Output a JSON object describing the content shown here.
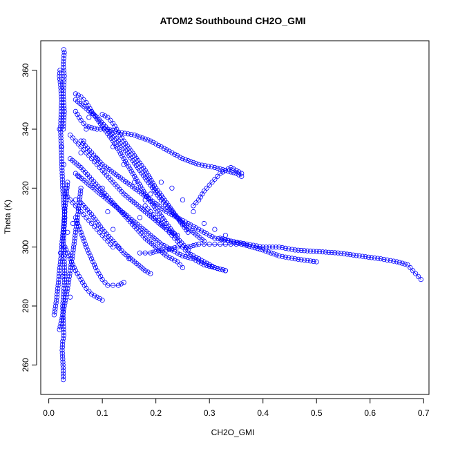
{
  "chart_data": {
    "type": "scatter",
    "title": "ATOM2 Southbound CH2O_GMI",
    "xlabel": "CH2O_GMI",
    "ylabel": "Theta (K)",
    "xlim": [
      -0.015,
      0.71
    ],
    "ylim": [
      250,
      370
    ],
    "xticks": [
      0.0,
      0.1,
      0.2,
      0.3,
      0.4,
      0.5,
      0.6,
      0.7
    ],
    "xtick_labels": [
      "0.0",
      "0.1",
      "0.2",
      "0.3",
      "0.4",
      "0.5",
      "0.6",
      "0.7"
    ],
    "yticks": [
      260,
      280,
      300,
      320,
      340,
      360
    ],
    "ytick_labels": [
      "260",
      "280",
      "300",
      "320",
      "340",
      "360"
    ],
    "grid": false,
    "marker": "open-circle",
    "color": "#0000ff",
    "series": [
      {
        "x": [
          0.027,
          0.027,
          0.026,
          0.025,
          0.026,
          0.028,
          0.027,
          0.026,
          0.028,
          0.03,
          0.029,
          0.027,
          0.028,
          0.03,
          0.026,
          0.024,
          0.022,
          0.023,
          0.024,
          0.022,
          0.02,
          0.021
        ],
        "y": [
          255,
          258,
          262,
          265,
          268,
          270,
          275,
          280,
          285,
          290,
          295,
          300,
          305,
          310,
          320,
          330,
          340,
          345,
          350,
          355,
          358,
          360
        ]
      },
      {
        "x": [
          0.028,
          0.029,
          0.028,
          0.027,
          0.028,
          0.029,
          0.028,
          0.027,
          0.028,
          0.029,
          0.028,
          0.027
        ],
        "y": [
          367,
          366,
          364,
          362,
          360,
          358,
          355,
          352,
          349,
          346,
          343,
          340
        ]
      },
      {
        "x": [
          0.01,
          0.012,
          0.015,
          0.018,
          0.02,
          0.023,
          0.025,
          0.028,
          0.03,
          0.033,
          0.035
        ],
        "y": [
          277,
          279,
          283,
          288,
          292,
          297,
          302,
          308,
          313,
          318,
          322
        ]
      },
      {
        "x": [
          0.05,
          0.06,
          0.07,
          0.09,
          0.11,
          0.13,
          0.16,
          0.19,
          0.22,
          0.25,
          0.28,
          0.31,
          0.33,
          0.35,
          0.36
        ],
        "y": [
          346,
          343,
          341,
          340,
          340,
          339,
          338,
          336,
          333,
          330,
          328,
          327,
          326,
          325,
          324
        ]
      },
      {
        "x": [
          0.36,
          0.35,
          0.34,
          0.33,
          0.32,
          0.31,
          0.3,
          0.29,
          0.28,
          0.27
        ],
        "y": [
          325,
          326,
          327,
          326,
          325,
          323,
          321,
          319,
          316,
          314
        ]
      },
      {
        "x": [
          0.06,
          0.08,
          0.1,
          0.13,
          0.16,
          0.19,
          0.22,
          0.25,
          0.28,
          0.31,
          0.34,
          0.37,
          0.4,
          0.43,
          0.46,
          0.5,
          0.54,
          0.58,
          0.62,
          0.65,
          0.67,
          0.68,
          0.69,
          0.695
        ],
        "y": [
          336,
          332,
          328,
          324,
          320,
          316,
          312,
          309,
          306,
          303,
          302,
          301,
          300,
          300,
          299,
          298.5,
          298,
          297,
          296,
          295,
          294,
          292,
          290,
          289
        ]
      },
      {
        "x": [
          0.32,
          0.36,
          0.4,
          0.43,
          0.46,
          0.5
        ],
        "y": [
          303,
          301,
          299,
          297,
          296,
          295
        ]
      },
      {
        "x": [
          0.05,
          0.07,
          0.09,
          0.11,
          0.13,
          0.15,
          0.17,
          0.19,
          0.21,
          0.23,
          0.25,
          0.27,
          0.29
        ],
        "y": [
          350,
          347,
          344,
          340,
          336,
          331,
          326,
          321,
          316,
          312,
          308,
          305,
          302
        ]
      },
      {
        "x": [
          0.05,
          0.06,
          0.07,
          0.08,
          0.1,
          0.12,
          0.14,
          0.16,
          0.18,
          0.2,
          0.22,
          0.24,
          0.26
        ],
        "y": [
          352,
          351,
          349,
          346,
          341,
          336,
          330,
          324,
          318,
          313,
          308,
          303,
          299
        ]
      },
      {
        "x": [
          0.1,
          0.11,
          0.12,
          0.13,
          0.14,
          0.16,
          0.18,
          0.2,
          0.22,
          0.24,
          0.26
        ],
        "y": [
          345,
          344,
          342,
          339,
          336,
          331,
          326,
          320,
          315,
          310,
          305
        ]
      },
      {
        "x": [
          0.04,
          0.06,
          0.08,
          0.1,
          0.12,
          0.14,
          0.16,
          0.18,
          0.2,
          0.22,
          0.24,
          0.25
        ],
        "y": [
          330,
          327,
          323,
          319,
          315,
          311,
          307,
          303,
          300,
          297,
          295,
          293
        ]
      },
      {
        "x": [
          0.05,
          0.07,
          0.09,
          0.11,
          0.13,
          0.15,
          0.17,
          0.19,
          0.21,
          0.23,
          0.25,
          0.27,
          0.29,
          0.31,
          0.33
        ],
        "y": [
          325,
          322,
          319,
          316,
          313,
          310,
          307,
          304,
          301,
          299,
          297,
          296,
          294,
          293,
          292
        ]
      },
      {
        "x": [
          0.06,
          0.08,
          0.1,
          0.12,
          0.14,
          0.16,
          0.18,
          0.19
        ],
        "y": [
          315,
          311,
          306,
          302,
          298,
          295,
          292,
          291
        ]
      },
      {
        "x": [
          0.05,
          0.06,
          0.07,
          0.08,
          0.09,
          0.1,
          0.11,
          0.12,
          0.13,
          0.14
        ],
        "y": [
          310,
          305,
          300,
          296,
          292,
          289,
          287,
          287,
          287,
          288
        ]
      },
      {
        "x": [
          0.03,
          0.04,
          0.05,
          0.06,
          0.07,
          0.08,
          0.09,
          0.1
        ],
        "y": [
          300,
          296,
          292,
          289,
          286,
          284,
          283,
          282
        ]
      },
      {
        "x": [
          0.04,
          0.05,
          0.06,
          0.07,
          0.08,
          0.09,
          0.1,
          0.12,
          0.14,
          0.16,
          0.18,
          0.2,
          0.22,
          0.24
        ],
        "y": [
          338,
          336,
          334,
          332,
          330,
          328,
          326,
          322,
          318,
          315,
          312,
          309,
          306,
          304
        ]
      },
      {
        "x": [
          0.17,
          0.18,
          0.19,
          0.2,
          0.21,
          0.22,
          0.23,
          0.24,
          0.25,
          0.26,
          0.27,
          0.28,
          0.29,
          0.3,
          0.31,
          0.32,
          0.33,
          0.34,
          0.35
        ],
        "y": [
          298,
          298,
          298,
          298.5,
          299,
          299,
          299.5,
          300,
          300,
          300,
          300.5,
          301,
          301,
          301,
          301,
          301,
          301,
          301,
          301
        ]
      },
      {
        "x": [
          0.18,
          0.19,
          0.2,
          0.21,
          0.22,
          0.23,
          0.24,
          0.25,
          0.26,
          0.27,
          0.28,
          0.29,
          0.3,
          0.31,
          0.32,
          0.33
        ],
        "y": [
          314,
          312,
          310,
          308,
          306,
          304,
          302,
          300,
          298,
          297,
          296,
          295,
          294,
          293,
          292.5,
          292
        ]
      },
      {
        "x": [
          0.02,
          0.025,
          0.03,
          0.035,
          0.04,
          0.045,
          0.05,
          0.055,
          0.06
        ],
        "y": [
          272,
          276,
          281,
          286,
          292,
          298,
          305,
          312,
          320
        ]
      },
      {
        "x": [
          0.03,
          0.04,
          0.05,
          0.06,
          0.07,
          0.08,
          0.09,
          0.1,
          0.11,
          0.12
        ],
        "y": [
          318,
          316,
          314,
          312,
          310,
          308,
          306,
          304,
          302,
          300
        ]
      }
    ],
    "scatter_points": {
      "x": [
        0.02,
        0.024,
        0.028,
        0.032,
        0.03,
        0.035,
        0.022,
        0.026,
        0.04,
        0.045,
        0.05,
        0.055,
        0.06,
        0.065,
        0.07,
        0.075,
        0.08,
        0.09,
        0.1,
        0.11,
        0.12,
        0.13,
        0.15,
        0.17,
        0.19,
        0.21,
        0.23,
        0.25,
        0.27,
        0.29,
        0.31,
        0.33,
        0.12,
        0.14,
        0.16,
        0.18,
        0.2,
        0.22,
        0.24,
        0.26,
        0.28,
        0.3
      ],
      "y": [
        340,
        334,
        328,
        320,
        312,
        305,
        298,
        290,
        283,
        308,
        316,
        324,
        332,
        336,
        340,
        344,
        346,
        330,
        320,
        312,
        306,
        300,
        296,
        310,
        318,
        322,
        320,
        316,
        312,
        308,
        306,
        304,
        334,
        328,
        322,
        316,
        310,
        306,
        302,
        298,
        296,
        294
      ]
    }
  }
}
